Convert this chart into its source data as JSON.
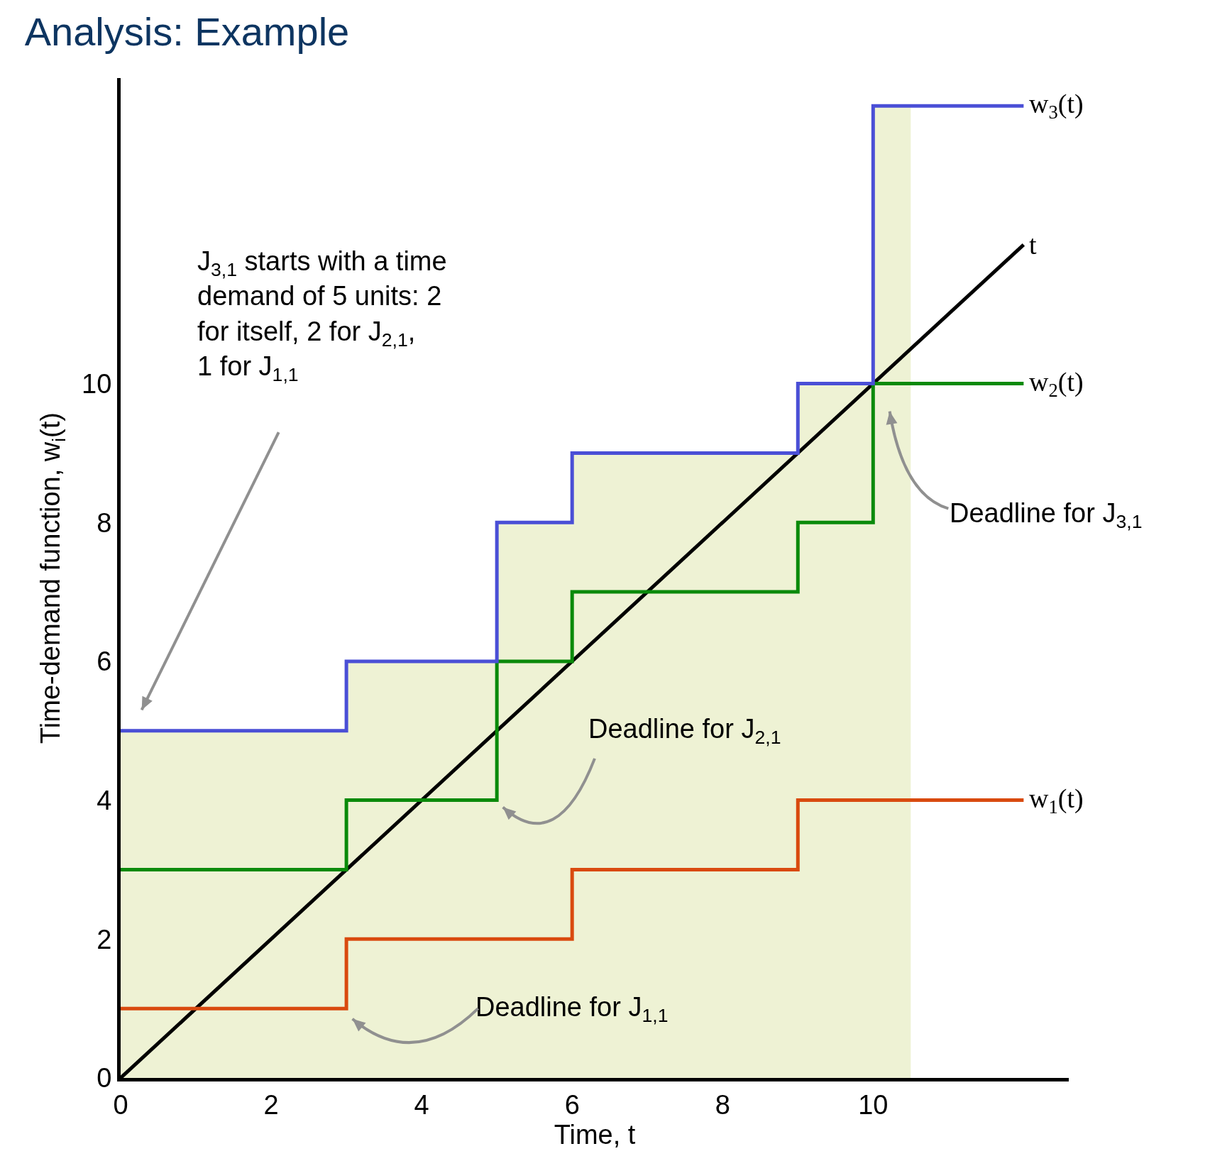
{
  "chart_data": {
    "type": "step",
    "title": "Analysis: Example",
    "xlabel": "Time, t",
    "ylabel": "Time-demand function, w$_{i}$(t)",
    "xlim": [
      0,
      12.6
    ],
    "ylim": [
      0,
      14.4
    ],
    "xticks": [
      0,
      2,
      4,
      6,
      8,
      10
    ],
    "yticks": [
      0,
      2,
      4,
      6,
      8,
      10
    ],
    "grid": false,
    "legend": false,
    "marker": "none",
    "series": [
      {
        "type": "area",
        "color": "#eef2d4",
        "x": [
          0,
          3,
          5,
          6,
          9,
          10,
          10.5
        ],
        "values": [
          5,
          6,
          8,
          9,
          10,
          14,
          14
        ]
      },
      {
        "type": "line",
        "name": "t",
        "color": "#000000",
        "x": [
          0,
          12
        ],
        "values": [
          0,
          12
        ]
      },
      {
        "name": "w$_{1}$(t)",
        "color": "#d94a0f",
        "x": [
          0,
          3,
          6,
          9,
          12
        ],
        "values": [
          1,
          2,
          3,
          4,
          4
        ]
      },
      {
        "name": "w$_{2}$(t)",
        "color": "#0a8a0a",
        "x": [
          0,
          3,
          5,
          6,
          9,
          10,
          12
        ],
        "values": [
          3,
          4,
          6,
          7,
          8,
          10,
          10
        ]
      },
      {
        "name": "w$_{3}$(t)",
        "color": "#4a4fd6",
        "x": [
          0,
          3,
          5,
          6,
          9,
          10,
          12
        ],
        "values": [
          5,
          6,
          8,
          9,
          10,
          14,
          14
        ]
      }
    ],
    "annotations": [
      "J$_{3,1}$ starts with a time\ndemand of 5 units: 2\nfor itself, 2 for J$_{2,1}$,\n1 for J$_{1,1}$",
      "Deadline for J$_{1,1}$",
      "Deadline for J$_{2,1}$",
      "Deadline for J$_{3,1}$"
    ]
  }
}
